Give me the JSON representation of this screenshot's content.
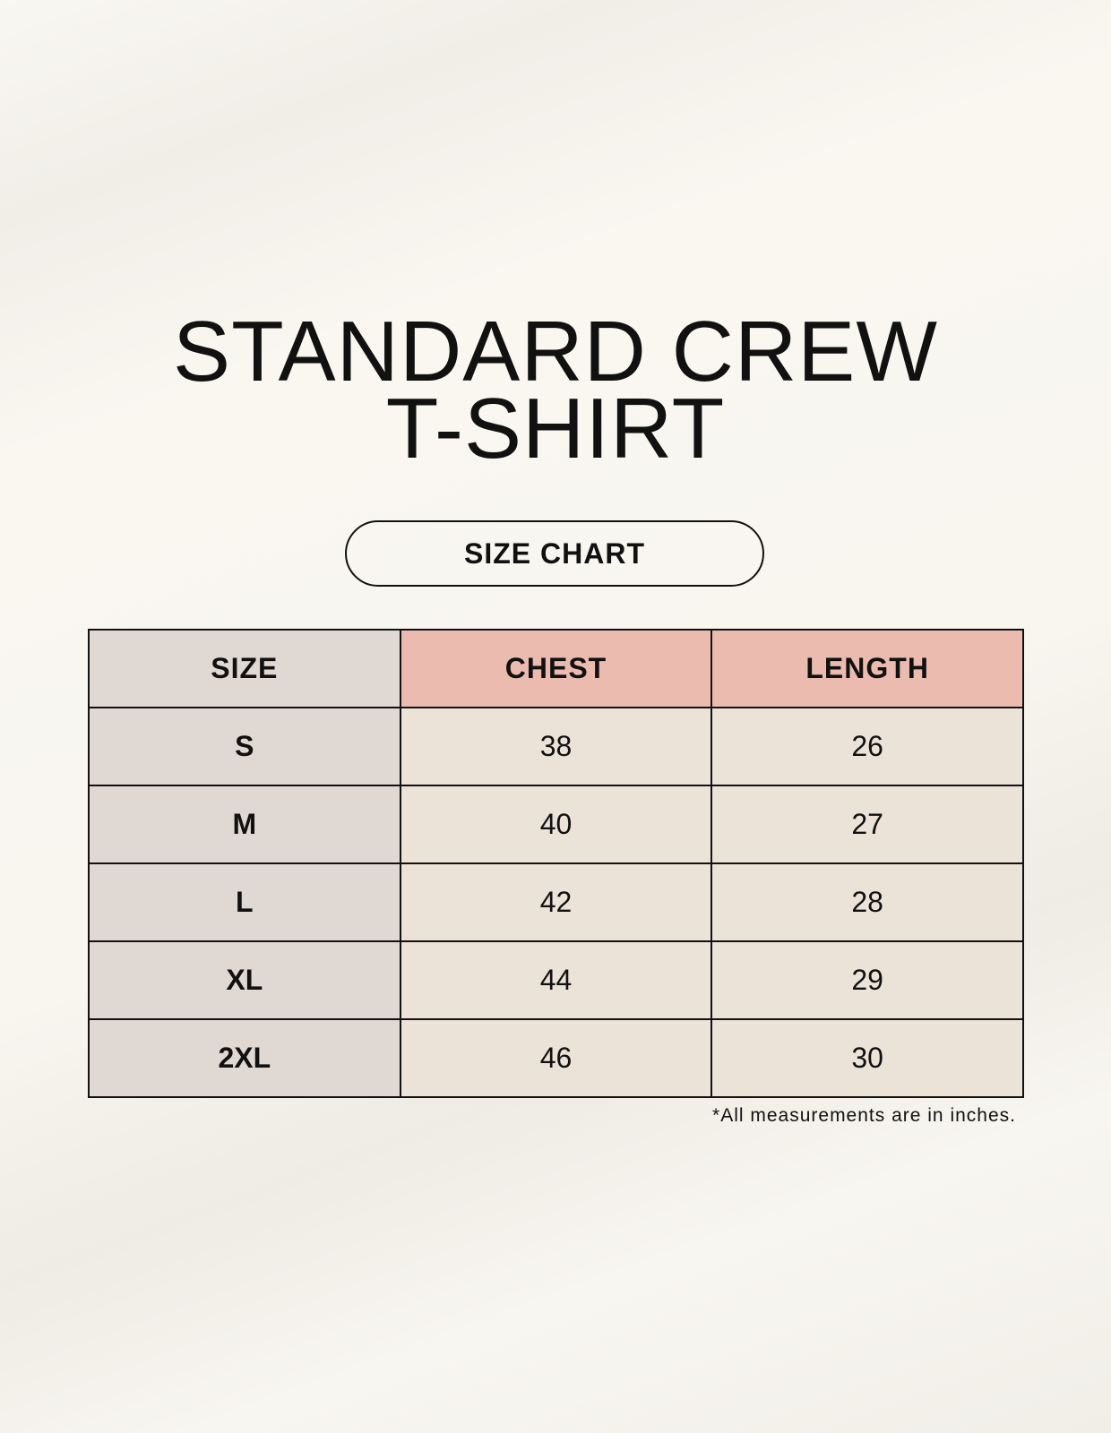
{
  "title": {
    "line1": "STANDARD CREW",
    "line2": "T-SHIRT"
  },
  "badge": "SIZE CHART",
  "table": {
    "headers": [
      "SIZE",
      "CHEST",
      "LENGTH"
    ],
    "rows": [
      [
        "S",
        "38",
        "26"
      ],
      [
        "M",
        "40",
        "27"
      ],
      [
        "L",
        "42",
        "28"
      ],
      [
        "XL",
        "44",
        "29"
      ],
      [
        "2XL",
        "46",
        "30"
      ]
    ]
  },
  "note": "*All measurements are in inches.",
  "colors": {
    "size_column": "#e0d8d3",
    "header_accent": "#ecbbaf",
    "value_cells": "#ebe2d8"
  }
}
